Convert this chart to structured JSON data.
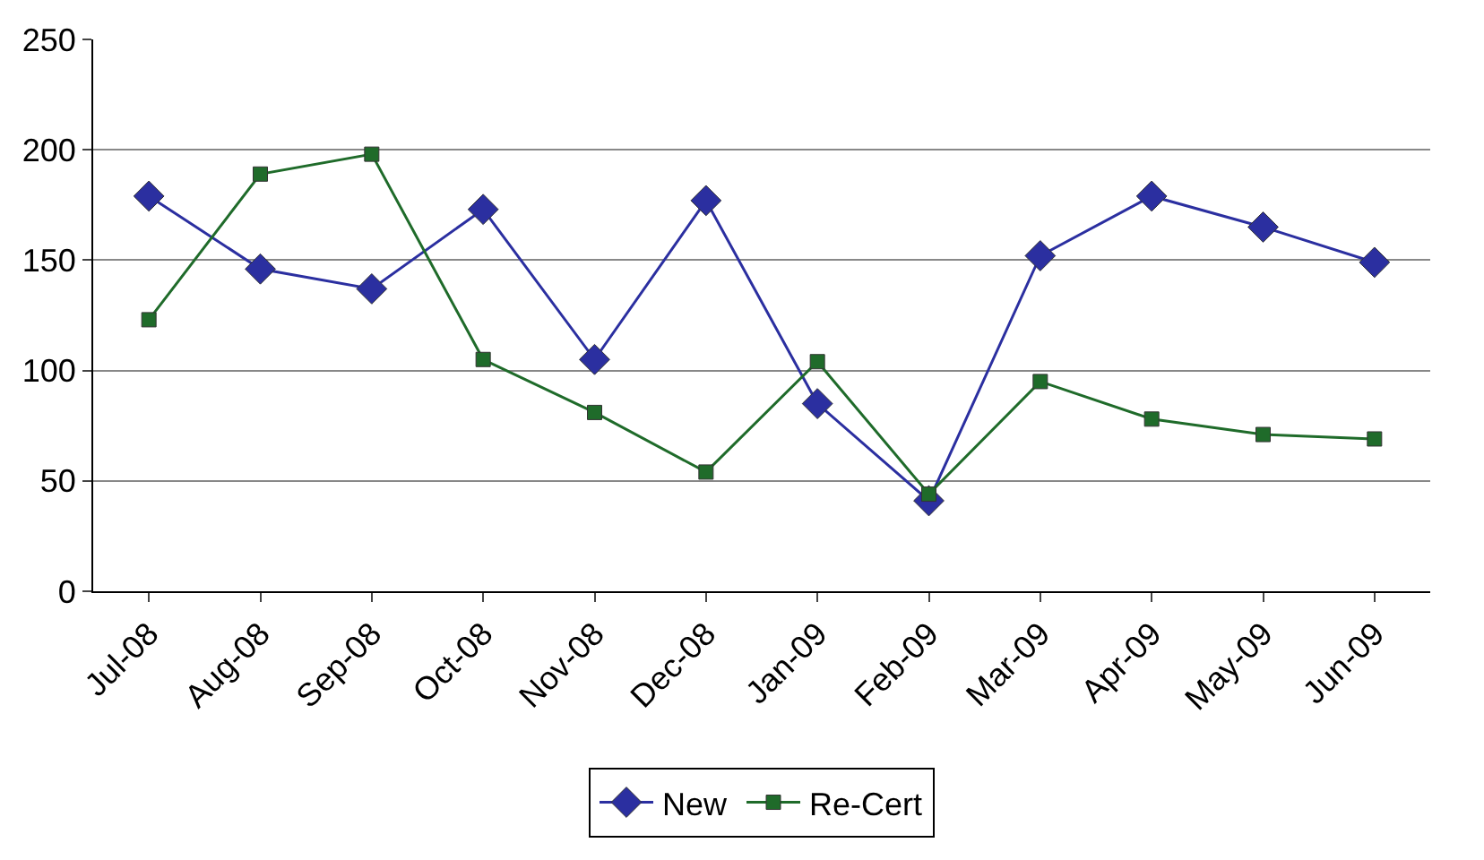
{
  "chart_data": {
    "type": "line",
    "categories": [
      "Jul-08",
      "Aug-08",
      "Sep-08",
      "Oct-08",
      "Nov-08",
      "Dec-08",
      "Jan-09",
      "Feb-09",
      "Mar-09",
      "Apr-09",
      "May-09",
      "Jun-09"
    ],
    "series": [
      {
        "name": "New",
        "color": "#2b2fa0",
        "marker": "diamond",
        "values": [
          179,
          146,
          137,
          173,
          105,
          177,
          85,
          41,
          152,
          179,
          165,
          149
        ]
      },
      {
        "name": "Re-Cert",
        "color": "#1f6b2a",
        "marker": "square",
        "values": [
          123,
          189,
          198,
          105,
          81,
          54,
          104,
          44,
          95,
          78,
          71,
          69
        ]
      }
    ],
    "ylim": [
      0,
      250
    ],
    "yticks": [
      0,
      50,
      100,
      150,
      200,
      250
    ],
    "grid": "y",
    "legend": "bottom",
    "line_style": "solid"
  }
}
